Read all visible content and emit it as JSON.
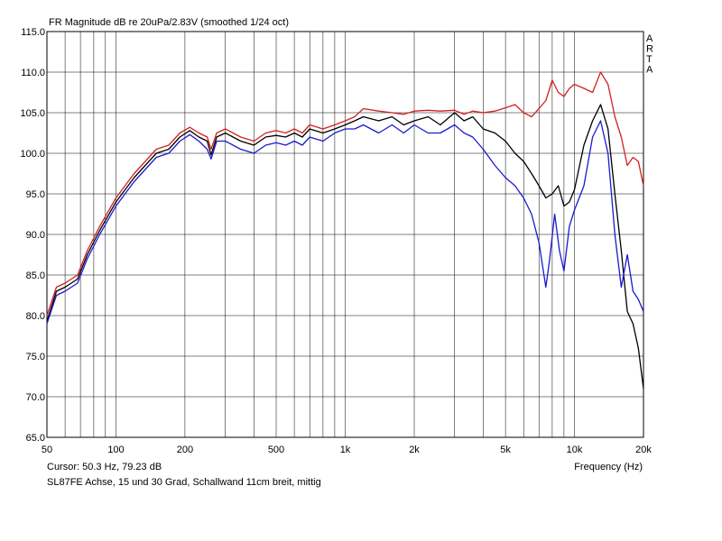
{
  "chart_data": {
    "type": "line",
    "title": "FR Magnitude dB re 20uPa/2.83V (smoothed 1/24 oct)",
    "watermark": "ARTA",
    "xlabel": "Frequency (Hz)",
    "ylabel": "",
    "x_scale": "log",
    "xlim": [
      50,
      20000
    ],
    "ylim": [
      65,
      115
    ],
    "grid": true,
    "x_ticks": [
      50,
      100,
      200,
      500,
      1000,
      2000,
      5000,
      10000,
      20000
    ],
    "x_tick_labels": [
      "50",
      "100",
      "200",
      "500",
      "1k",
      "2k",
      "5k",
      "10k",
      "20k"
    ],
    "y_ticks": [
      65,
      70,
      75,
      80,
      85,
      90,
      95,
      100,
      105,
      110,
      115
    ],
    "y_tick_labels": [
      "65.0",
      "70.0",
      "75.0",
      "80.0",
      "85.0",
      "90.0",
      "95.0",
      "100.0",
      "105.0",
      "110.0",
      "115.0"
    ],
    "cursor_text": "Cursor: 50.3 Hz, 79.23 dB",
    "caption": "SL87FE Achse, 15 und 30 Grad, Schallwand 11cm breit, mittig",
    "colors": {
      "red": "#d42020",
      "black": "#000000",
      "blue": "#1a1ad0"
    },
    "series": [
      {
        "color": "red",
        "x": [
          50,
          55,
          60,
          68,
          75,
          85,
          100,
          120,
          150,
          170,
          190,
          210,
          230,
          250,
          260,
          275,
          300,
          350,
          400,
          450,
          500,
          550,
          600,
          650,
          700,
          800,
          900,
          1000,
          1100,
          1200,
          1400,
          1600,
          1800,
          2000,
          2300,
          2600,
          3000,
          3300,
          3600,
          4000,
          4500,
          5000,
          5500,
          6000,
          6500,
          7000,
          7500,
          8000,
          8500,
          9000,
          9500,
          10000,
          11000,
          12000,
          13000,
          14000,
          15000,
          16000,
          17000,
          18000,
          19000,
          20000
        ],
        "y": [
          80.0,
          83.5,
          84.0,
          85.0,
          88.0,
          91.0,
          94.5,
          97.5,
          100.5,
          101.0,
          102.5,
          103.2,
          102.5,
          102.0,
          100.5,
          102.5,
          103.0,
          102.0,
          101.5,
          102.5,
          102.8,
          102.5,
          103.0,
          102.5,
          103.5,
          103.0,
          103.5,
          104.0,
          104.5,
          105.5,
          105.2,
          105.0,
          104.8,
          105.2,
          105.3,
          105.2,
          105.3,
          104.8,
          105.2,
          105.0,
          105.2,
          105.6,
          106.0,
          105.0,
          104.5,
          105.5,
          106.5,
          109.0,
          107.5,
          107.0,
          108.0,
          108.5,
          108.0,
          107.5,
          110.0,
          108.5,
          104.5,
          102.0,
          98.5,
          99.5,
          99.0,
          96.0
        ]
      },
      {
        "color": "black",
        "x": [
          50,
          55,
          60,
          68,
          75,
          85,
          100,
          120,
          150,
          170,
          190,
          210,
          230,
          250,
          260,
          275,
          300,
          350,
          400,
          450,
          500,
          550,
          600,
          650,
          700,
          800,
          900,
          1000,
          1100,
          1200,
          1400,
          1600,
          1800,
          2000,
          2300,
          2600,
          3000,
          3300,
          3600,
          4000,
          4500,
          5000,
          5500,
          6000,
          6500,
          7000,
          7500,
          8000,
          8500,
          9000,
          9500,
          10000,
          11000,
          12000,
          13000,
          14000,
          15000,
          16000,
          17000,
          18000,
          19000,
          20000
        ],
        "y": [
          79.3,
          83.0,
          83.5,
          84.5,
          87.5,
          90.5,
          94.0,
          97.0,
          100.0,
          100.5,
          102.0,
          102.8,
          102.0,
          101.5,
          99.8,
          102.0,
          102.5,
          101.5,
          101.0,
          102.0,
          102.2,
          102.0,
          102.5,
          102.0,
          103.0,
          102.5,
          103.0,
          103.5,
          104.0,
          104.5,
          104.0,
          104.5,
          103.5,
          104.0,
          104.5,
          103.5,
          105.0,
          104.0,
          104.5,
          103.0,
          102.5,
          101.5,
          100.0,
          99.0,
          97.5,
          96.0,
          94.5,
          95.0,
          96.0,
          93.5,
          94.0,
          95.5,
          101.0,
          104.0,
          106.0,
          103.0,
          95.0,
          88.0,
          80.5,
          79.0,
          76.0,
          71.0
        ]
      },
      {
        "color": "blue",
        "x": [
          50,
          55,
          60,
          68,
          75,
          85,
          100,
          120,
          150,
          170,
          190,
          210,
          230,
          250,
          260,
          275,
          300,
          350,
          400,
          450,
          500,
          550,
          600,
          650,
          700,
          800,
          900,
          1000,
          1100,
          1200,
          1400,
          1600,
          1800,
          2000,
          2300,
          2600,
          3000,
          3300,
          3600,
          4000,
          4500,
          5000,
          5500,
          6000,
          6500,
          7000,
          7500,
          7800,
          8200,
          8600,
          9000,
          9500,
          10000,
          11000,
          12000,
          13000,
          14000,
          15000,
          16000,
          17000,
          18000,
          19000,
          20000
        ],
        "y": [
          79.0,
          82.5,
          83.0,
          84.0,
          87.0,
          90.0,
          93.5,
          96.5,
          99.5,
          100.0,
          101.5,
          102.3,
          101.5,
          100.5,
          99.3,
          101.5,
          101.5,
          100.5,
          100.0,
          101.0,
          101.3,
          101.0,
          101.5,
          101.0,
          102.0,
          101.5,
          102.5,
          103.0,
          103.0,
          103.5,
          102.5,
          103.5,
          102.5,
          103.5,
          102.5,
          102.5,
          103.5,
          102.5,
          102.0,
          100.5,
          98.5,
          97.0,
          96.0,
          94.5,
          92.5,
          89.0,
          83.5,
          87.0,
          92.5,
          88.0,
          85.5,
          91.0,
          93.0,
          96.0,
          102.0,
          104.0,
          100.0,
          90.0,
          83.5,
          87.5,
          83.0,
          82.0,
          80.5
        ]
      }
    ]
  }
}
